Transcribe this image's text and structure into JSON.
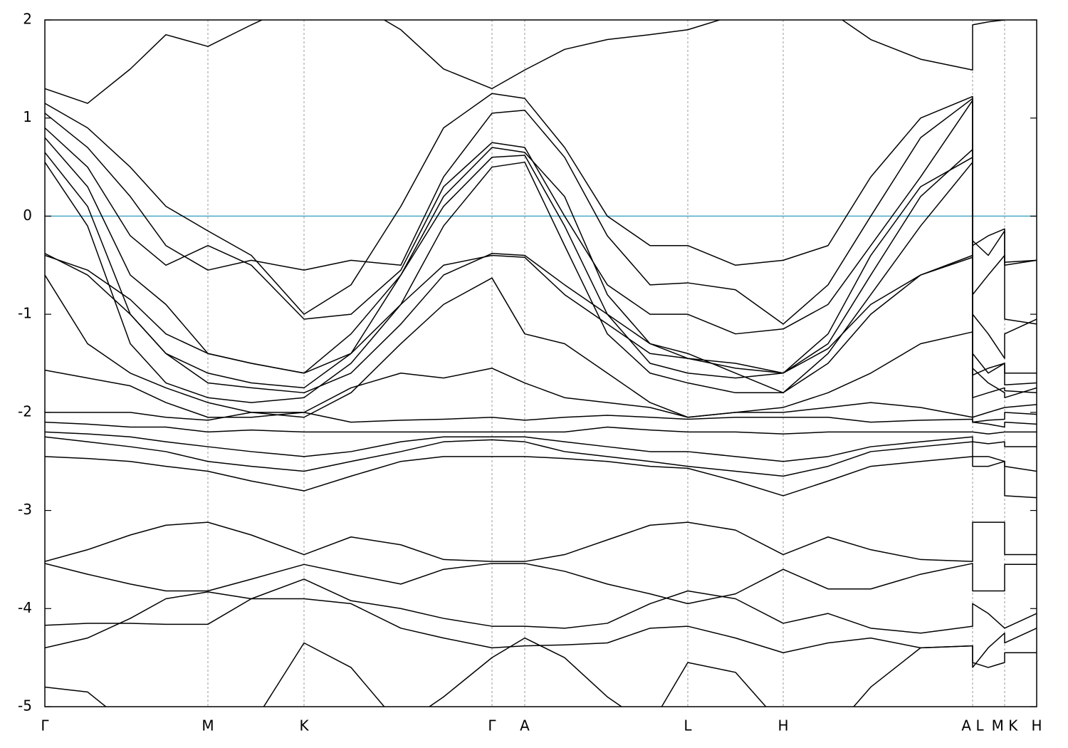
{
  "chart_data": {
    "type": "line",
    "x": [
      0,
      0.6,
      1.2,
      1.7,
      2.29,
      2.9,
      3.64,
      4.3,
      5.0,
      5.6,
      6.28,
      6.74,
      7.3,
      7.9,
      8.5,
      9.03,
      9.7,
      10.37,
      11.0,
      11.6,
      12.3,
      13.03,
      13.03,
      13.25,
      13.48,
      13.48,
      13.93
    ],
    "xlim": [
      0,
      13.93
    ],
    "xticks": [
      {
        "value": 0,
        "label": "Γ"
      },
      {
        "value": 2.29,
        "label": "M"
      },
      {
        "value": 3.64,
        "label": "K"
      },
      {
        "value": 6.28,
        "label": "Γ"
      },
      {
        "value": 6.74,
        "label": "A"
      },
      {
        "value": 9.03,
        "label": "L"
      },
      {
        "value": 10.37,
        "label": "H"
      },
      {
        "value": 13.03,
        "label": "A  L"
      },
      {
        "value": 13.48,
        "label": "M K"
      },
      {
        "value": 13.93,
        "label": "H"
      }
    ],
    "ylim": [
      -5,
      2
    ],
    "yticks": [
      -5,
      -4,
      -3,
      -2,
      -1,
      0,
      1,
      2
    ],
    "xgrid": true,
    "hlines": [
      {
        "value": 0,
        "color": "#4aa9c6"
      }
    ],
    "series": [
      {
        "color": "#000000",
        "values": [
          1.3,
          1.15,
          1.5,
          1.85,
          1.73,
          1.95,
          2.2,
          2.2,
          1.9,
          1.5,
          1.3,
          1.49,
          1.7,
          1.8,
          1.85,
          1.9,
          2.05,
          2.2,
          2.1,
          1.8,
          1.6,
          1.49,
          1.95,
          1.98,
          2.0,
          2.3,
          2.3
        ]
      },
      {
        "color": "#000000",
        "values": [
          1.15,
          0.9,
          0.5,
          0.1,
          -0.15,
          -0.4,
          -1.0,
          -0.7,
          0.1,
          0.9,
          1.25,
          1.2,
          0.7,
          0.0,
          -0.3,
          -0.3,
          -0.5,
          -0.45,
          -0.3,
          0.4,
          1.0,
          1.22,
          -0.3,
          -0.2,
          -0.13,
          -0.5,
          -0.45
        ]
      },
      {
        "color": "#000000",
        "values": [
          1.05,
          0.7,
          0.2,
          -0.3,
          -0.55,
          -0.45,
          -0.55,
          -0.45,
          -0.5,
          0.4,
          1.05,
          1.08,
          0.6,
          -0.2,
          -0.7,
          -0.68,
          -0.75,
          -1.1,
          -0.7,
          0.0,
          0.8,
          1.2,
          -0.25,
          -0.4,
          -0.15,
          -0.47,
          -0.45
        ]
      },
      {
        "color": "#000000",
        "values": [
          0.9,
          0.5,
          -0.2,
          -0.5,
          -0.3,
          -0.5,
          -1.05,
          -1.0,
          -0.55,
          0.3,
          0.75,
          0.7,
          0.0,
          -0.7,
          -1.0,
          -1.0,
          -1.2,
          -1.15,
          -0.9,
          -0.3,
          0.4,
          1.18,
          -0.8,
          -0.6,
          -0.4,
          -1.05,
          -1.1
        ]
      },
      {
        "color": "#000000",
        "values": [
          0.8,
          0.3,
          -0.6,
          -0.9,
          -1.4,
          -1.5,
          -1.6,
          -1.2,
          -0.6,
          0.2,
          0.7,
          0.65,
          0.2,
          -0.8,
          -1.3,
          -1.45,
          -1.55,
          -1.6,
          -1.3,
          -0.6,
          0.2,
          0.68,
          -1.0,
          -1.2,
          -1.45,
          -1.2,
          -1.05
        ]
      },
      {
        "color": "#000000",
        "values": [
          0.65,
          0.1,
          -1.0,
          -1.4,
          -1.6,
          -1.7,
          -1.75,
          -1.4,
          -0.6,
          0.1,
          0.6,
          0.62,
          -0.1,
          -1.0,
          -1.5,
          -1.6,
          -1.65,
          -1.6,
          -1.2,
          -0.4,
          0.3,
          0.6,
          -1.4,
          -1.6,
          -1.5,
          -1.6,
          -1.6
        ]
      },
      {
        "color": "#000000",
        "values": [
          0.55,
          -0.1,
          -1.3,
          -1.7,
          -1.85,
          -1.9,
          -1.85,
          -1.5,
          -0.9,
          -0.1,
          0.5,
          0.55,
          -0.3,
          -1.2,
          -1.6,
          -1.7,
          -1.8,
          -1.8,
          -1.4,
          -0.8,
          -0.1,
          0.55,
          -1.55,
          -1.7,
          -1.8,
          -1.85,
          -1.75
        ]
      },
      {
        "color": "#000000",
        "values": [
          -0.4,
          -0.55,
          -0.85,
          -1.2,
          -1.4,
          -1.5,
          -1.6,
          -1.4,
          -0.9,
          -0.5,
          -0.4,
          -0.42,
          -0.8,
          -1.1,
          -1.4,
          -1.45,
          -1.5,
          -1.6,
          -1.35,
          -0.9,
          -0.6,
          -0.42,
          -1.85,
          -1.8,
          -1.75,
          -1.78,
          -1.8
        ]
      },
      {
        "color": "#000000",
        "values": [
          -0.38,
          -0.6,
          -1.0,
          -1.4,
          -1.7,
          -1.75,
          -1.8,
          -1.6,
          -1.1,
          -0.6,
          -0.38,
          -0.4,
          -0.7,
          -1.0,
          -1.3,
          -1.4,
          -1.6,
          -1.8,
          -1.5,
          -1.0,
          -0.6,
          -0.4,
          -1.62,
          -1.55,
          -1.5,
          -1.72,
          -1.7
        ]
      },
      {
        "color": "#000000",
        "values": [
          -0.6,
          -1.3,
          -1.6,
          -1.75,
          -1.9,
          -2.0,
          -2.05,
          -1.8,
          -1.3,
          -0.9,
          -0.63,
          -1.2,
          -1.3,
          -1.6,
          -1.9,
          -2.05,
          -2.0,
          -1.95,
          -1.8,
          -1.6,
          -1.3,
          -1.18,
          -2.05,
          -2.0,
          -1.95,
          -1.95,
          -1.92
        ]
      },
      {
        "color": "#000000",
        "values": [
          -1.57,
          -1.65,
          -1.73,
          -1.9,
          -2.05,
          -2.05,
          -2.0,
          -1.75,
          -1.6,
          -1.65,
          -1.55,
          -1.7,
          -1.85,
          -1.9,
          -1.95,
          -2.05,
          -2.0,
          -2.0,
          -1.95,
          -1.9,
          -1.95,
          -2.05,
          -2.1,
          -2.08,
          -2.07,
          -2.0,
          -2.02
        ]
      },
      {
        "color": "#000000",
        "values": [
          -2.0,
          -2.0,
          -2.0,
          -2.05,
          -2.08,
          -2.0,
          -2.0,
          -2.1,
          -2.08,
          -2.07,
          -2.05,
          -2.08,
          -2.05,
          -2.03,
          -2.05,
          -2.07,
          -2.05,
          -2.05,
          -2.05,
          -2.1,
          -2.08,
          -2.07,
          -2.1,
          -2.12,
          -2.15,
          -2.1,
          -2.12
        ]
      },
      {
        "color": "#000000",
        "values": [
          -2.1,
          -2.12,
          -2.15,
          -2.15,
          -2.2,
          -2.18,
          -2.2,
          -2.2,
          -2.2,
          -2.2,
          -2.2,
          -2.2,
          -2.2,
          -2.15,
          -2.18,
          -2.2,
          -2.2,
          -2.22,
          -2.2,
          -2.2,
          -2.2,
          -2.2,
          -2.2,
          -2.22,
          -2.2,
          -2.2,
          -2.2
        ]
      },
      {
        "color": "#000000",
        "values": [
          -2.2,
          -2.22,
          -2.25,
          -2.3,
          -2.35,
          -2.4,
          -2.45,
          -2.4,
          -2.3,
          -2.25,
          -2.25,
          -2.25,
          -2.3,
          -2.35,
          -2.4,
          -2.4,
          -2.45,
          -2.5,
          -2.45,
          -2.35,
          -2.3,
          -2.25,
          -2.3,
          -2.32,
          -2.3,
          -2.35,
          -2.35
        ]
      },
      {
        "color": "#000000",
        "values": [
          -2.25,
          -2.3,
          -2.35,
          -2.4,
          -2.5,
          -2.55,
          -2.6,
          -2.5,
          -2.4,
          -2.3,
          -2.28,
          -2.3,
          -2.4,
          -2.45,
          -2.5,
          -2.55,
          -2.6,
          -2.65,
          -2.55,
          -2.4,
          -2.35,
          -2.3,
          -2.45,
          -2.45,
          -2.5,
          -2.55,
          -2.6
        ]
      },
      {
        "color": "#000000",
        "values": [
          -2.45,
          -2.47,
          -2.5,
          -2.55,
          -2.6,
          -2.7,
          -2.8,
          -2.65,
          -2.5,
          -2.45,
          -2.45,
          -2.45,
          -2.47,
          -2.5,
          -2.55,
          -2.57,
          -2.7,
          -2.85,
          -2.7,
          -2.55,
          -2.5,
          -2.45,
          -2.55,
          -2.55,
          -2.5,
          -2.85,
          -2.87
        ]
      },
      {
        "color": "#000000",
        "values": [
          -3.52,
          -3.4,
          -3.25,
          -3.15,
          -3.12,
          -3.25,
          -3.45,
          -3.27,
          -3.35,
          -3.5,
          -3.52,
          -3.52,
          -3.45,
          -3.3,
          -3.15,
          -3.12,
          -3.2,
          -3.45,
          -3.27,
          -3.4,
          -3.5,
          -3.52,
          -3.12,
          -3.12,
          -3.12,
          -3.45,
          -3.45
        ]
      },
      {
        "color": "#000000",
        "values": [
          -3.54,
          -3.65,
          -3.75,
          -3.82,
          -3.82,
          -3.7,
          -3.55,
          -3.65,
          -3.75,
          -3.6,
          -3.54,
          -3.54,
          -3.62,
          -3.75,
          -3.85,
          -3.95,
          -3.85,
          -3.6,
          -3.8,
          -3.8,
          -3.65,
          -3.54,
          -3.82,
          -3.82,
          -3.82,
          -3.55,
          -3.55
        ]
      },
      {
        "color": "#000000",
        "values": [
          -4.17,
          -4.15,
          -4.15,
          -4.16,
          -4.16,
          -3.9,
          -3.7,
          -3.92,
          -4.0,
          -4.1,
          -4.18,
          -4.18,
          -4.2,
          -4.15,
          -3.95,
          -3.82,
          -3.9,
          -4.15,
          -4.05,
          -4.2,
          -4.25,
          -4.18,
          -3.95,
          -4.05,
          -4.2,
          -4.2,
          -4.05
        ]
      },
      {
        "color": "#000000",
        "values": [
          -4.4,
          -4.3,
          -4.1,
          -3.9,
          -3.83,
          -3.9,
          -3.9,
          -3.95,
          -4.2,
          -4.3,
          -4.4,
          -4.38,
          -4.37,
          -4.35,
          -4.2,
          -4.18,
          -4.3,
          -4.45,
          -4.35,
          -4.3,
          -4.4,
          -4.38,
          -4.55,
          -4.6,
          -4.55,
          -4.45,
          -4.45
        ]
      },
      {
        "color": "#000000",
        "values": [
          -4.8,
          -4.85,
          -5.2,
          -5.5,
          -5.5,
          -5.2,
          -4.35,
          -4.6,
          -5.2,
          -4.9,
          -4.5,
          -4.3,
          -4.5,
          -4.9,
          -5.2,
          -4.55,
          -4.65,
          -5.2,
          -5.3,
          -4.8,
          -4.4,
          -4.38,
          -4.6,
          -4.4,
          -4.25,
          -4.35,
          -4.2
        ]
      }
    ]
  }
}
